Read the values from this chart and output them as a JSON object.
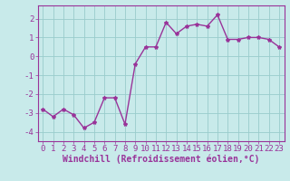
{
  "x": [
    0,
    1,
    2,
    3,
    4,
    5,
    6,
    7,
    8,
    9,
    10,
    11,
    12,
    13,
    14,
    15,
    16,
    17,
    18,
    19,
    20,
    21,
    22,
    23
  ],
  "y": [
    -2.8,
    -3.2,
    -2.8,
    -3.1,
    -3.8,
    -3.5,
    -2.2,
    -2.2,
    -3.6,
    -0.4,
    0.5,
    0.5,
    1.8,
    1.2,
    1.6,
    1.7,
    1.6,
    2.2,
    0.9,
    0.9,
    1.0,
    1.0,
    0.9,
    0.5
  ],
  "line_color": "#993399",
  "marker": "*",
  "marker_size": 3,
  "xlabel": "Windchill (Refroidissement éolien,°C)",
  "xlabel_fontsize": 7,
  "xlim": [
    -0.5,
    23.5
  ],
  "ylim": [
    -4.5,
    2.7
  ],
  "yticks": [
    -4,
    -3,
    -2,
    -1,
    0,
    1,
    2
  ],
  "ytick_labels": [
    "-4",
    "-3",
    "-2",
    "-1",
    "0",
    "1",
    "2"
  ],
  "xticks": [
    0,
    1,
    2,
    3,
    4,
    5,
    6,
    7,
    8,
    9,
    10,
    11,
    12,
    13,
    14,
    15,
    16,
    17,
    18,
    19,
    20,
    21,
    22,
    23
  ],
  "grid_color": "#99cccc",
  "bg_color": "#c8eaea",
  "tick_fontsize": 6.5,
  "line_width": 1.0,
  "spine_color": "#993399"
}
